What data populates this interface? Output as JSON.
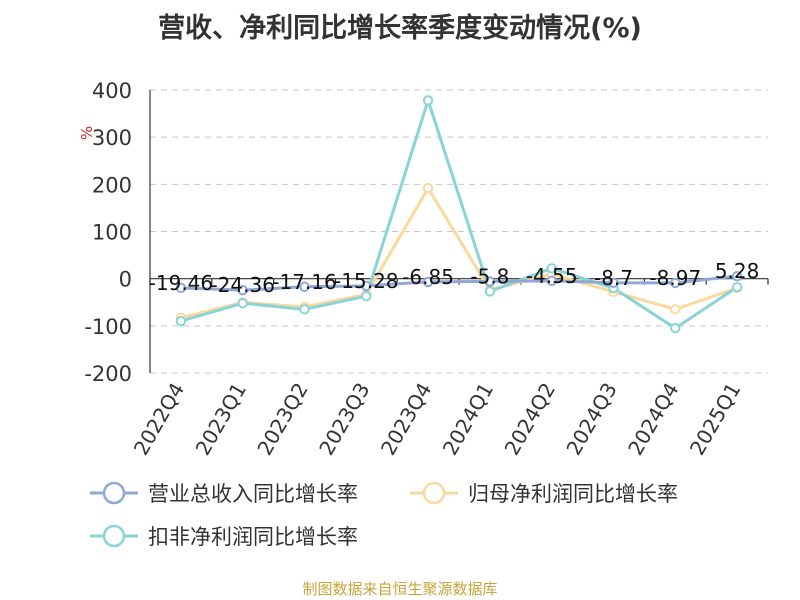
{
  "chart_data": {
    "type": "line",
    "title": "营收、净利同比增长率季度变动情况(%)",
    "ylabel": "%",
    "xlabel": "",
    "ylim": [
      -200,
      400
    ],
    "yticks": [
      400,
      300,
      200,
      100,
      0,
      -100,
      -200
    ],
    "grid": true,
    "legend_position": "bottom",
    "categories": [
      "2022Q4",
      "2023Q1",
      "2023Q2",
      "2023Q3",
      "2023Q4",
      "2024Q1",
      "2024Q2",
      "2024Q3",
      "2024Q4",
      "2025Q1"
    ],
    "series": [
      {
        "name": "营业总收入同比增长率",
        "color": "#8fa8d6",
        "values": [
          -19.46,
          -24.36,
          -17.16,
          -15.28,
          -6.85,
          -5.8,
          -4.55,
          -8.7,
          -8.97,
          5.28
        ],
        "labels": [
          "-19.46",
          "-24.36",
          "-17.16",
          "-15.28",
          "-6.85",
          "-5.8",
          "-4.55",
          "-8.7",
          "-8.97",
          "5.28"
        ]
      },
      {
        "name": "归母净利润同比增长率",
        "color": "#fbd89e",
        "values": [
          -83,
          -50,
          -60,
          -33,
          192,
          -24,
          10,
          -28,
          -65,
          -20
        ]
      },
      {
        "name": "扣非净利润同比增长率",
        "color": "#8ad4d6",
        "values": [
          -90,
          -52,
          -65,
          -37,
          378,
          -27,
          22,
          -20,
          -105,
          -18
        ]
      }
    ]
  },
  "source": "制图数据来自恒生聚源数据库"
}
